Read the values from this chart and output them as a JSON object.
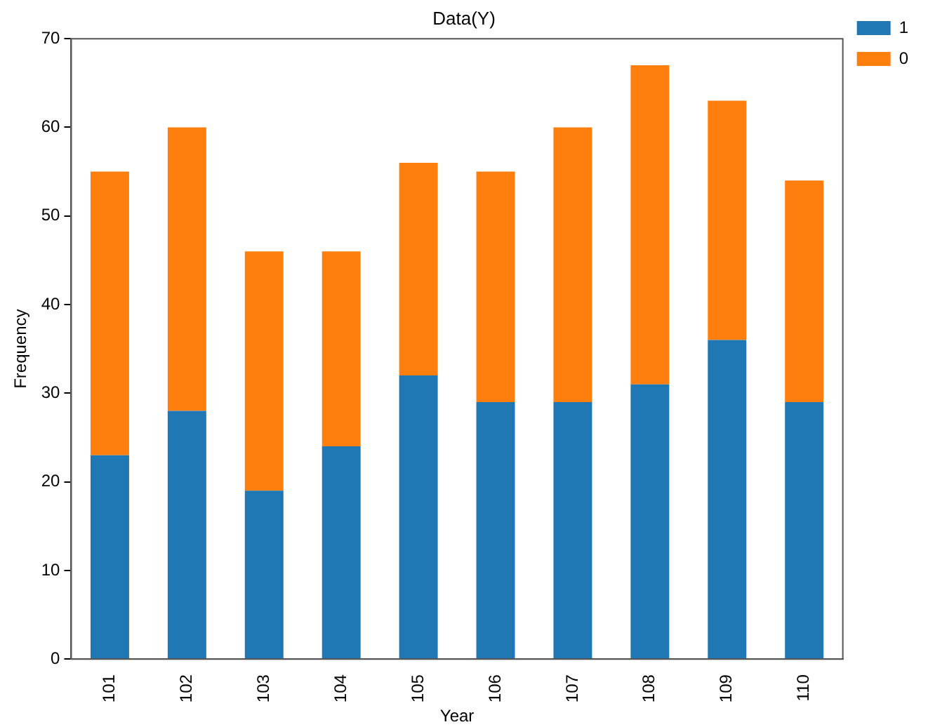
{
  "chart_data": {
    "type": "bar",
    "title": "Data(Y)",
    "xlabel": "Year",
    "ylabel": "Frequency",
    "categories": [
      "101",
      "102",
      "103",
      "104",
      "105",
      "106",
      "107",
      "108",
      "109",
      "110"
    ],
    "stacked": true,
    "series": [
      {
        "name": "1",
        "color": "#1f77b4",
        "values": [
          23,
          28,
          19,
          24,
          32,
          29,
          29,
          31,
          36,
          29
        ]
      },
      {
        "name": "0",
        "color": "#ff7f0e",
        "values": [
          32,
          32,
          27,
          22,
          24,
          26,
          31,
          36,
          27,
          25
        ]
      }
    ],
    "ylim": [
      0,
      70
    ],
    "yticks": [
      0,
      10,
      20,
      30,
      40,
      50,
      60,
      70
    ],
    "grid": false,
    "legend": "right"
  }
}
